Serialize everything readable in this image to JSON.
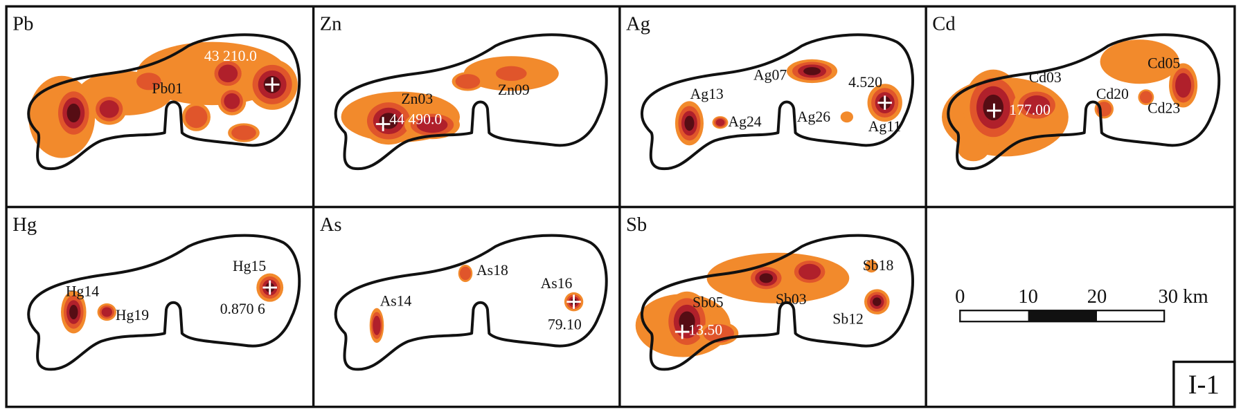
{
  "panels": [
    {
      "element": "Pb",
      "labels": [
        "Pb01"
      ],
      "max_value": "43 210.0"
    },
    {
      "element": "Zn",
      "labels": [
        "Zn03",
        "Zn09"
      ],
      "max_value": "44 490.0"
    },
    {
      "element": "Ag",
      "labels": [
        "Ag13",
        "Ag07",
        "Ag24",
        "Ag26",
        "Ag11"
      ],
      "max_value": "4.520"
    },
    {
      "element": "Cd",
      "labels": [
        "Cd03",
        "Cd05",
        "Cd20",
        "Cd23"
      ],
      "max_value": "177.00"
    },
    {
      "element": "Hg",
      "labels": [
        "Hg15",
        "Hg14",
        "Hg19"
      ],
      "max_value": "0.870 6"
    },
    {
      "element": "As",
      "labels": [
        "As18",
        "As16",
        "As14"
      ],
      "max_value": "79.10"
    },
    {
      "element": "Sb",
      "labels": [
        "Sb18",
        "Sb05",
        "Sb03",
        "Sb12"
      ],
      "max_value": "13.50"
    }
  ],
  "scale_bar": {
    "ticks": [
      "0",
      "10",
      "20",
      "30 km"
    ]
  },
  "figure_label": "I-1"
}
